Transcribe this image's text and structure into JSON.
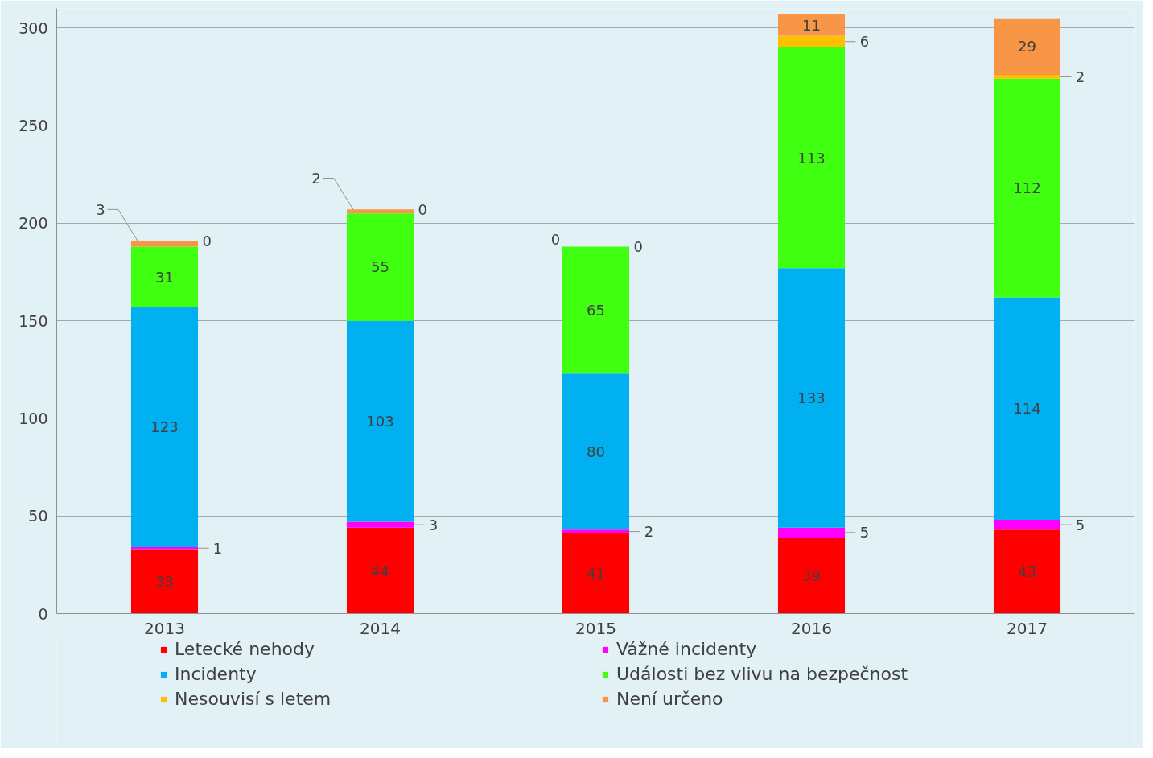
{
  "chart_data": {
    "type": "bar",
    "stacked": true,
    "data_labels": true,
    "grid": "y",
    "legend": "bottom",
    "categories": [
      "2013",
      "2014",
      "2015",
      "2016",
      "2017"
    ],
    "ylim": [
      0,
      310
    ],
    "yticks": [
      0,
      50,
      100,
      150,
      200,
      250,
      300
    ],
    "annotations": [
      {
        "text": "0",
        "x": "2013",
        "y": 191
      },
      {
        "text": "0",
        "x": "2014",
        "y": 207
      },
      {
        "text": "0",
        "x": "2015",
        "y": 188
      },
      {
        "text": "0",
        "x": "2015",
        "y": 188
      }
    ],
    "series": [
      {
        "name": "Letecké nehody",
        "color": "#ff0000",
        "values": [
          33,
          44,
          41,
          39,
          43
        ]
      },
      {
        "name": "Vážné incidenty",
        "color": "#ff00ff",
        "values": [
          1,
          3,
          2,
          5,
          5
        ]
      },
      {
        "name": "Incidenty",
        "color": "#00b0f0",
        "values": [
          123,
          103,
          80,
          133,
          114
        ]
      },
      {
        "name": "Události bez vlivu na bezpečnost",
        "color": "#40ff10",
        "values": [
          31,
          55,
          65,
          113,
          112
        ]
      },
      {
        "name": "Nesouvisí s letem",
        "color": "#ffc000",
        "values": [
          0,
          0,
          0,
          6,
          2
        ],
        "value_labels": [
          null,
          null,
          null,
          "6",
          "2"
        ]
      },
      {
        "name": "Není určeno",
        "color": "#f79646",
        "values": [
          3,
          2,
          0,
          11,
          29
        ],
        "value_labels": [
          "3",
          "2",
          null,
          "11",
          "29"
        ]
      }
    ]
  }
}
